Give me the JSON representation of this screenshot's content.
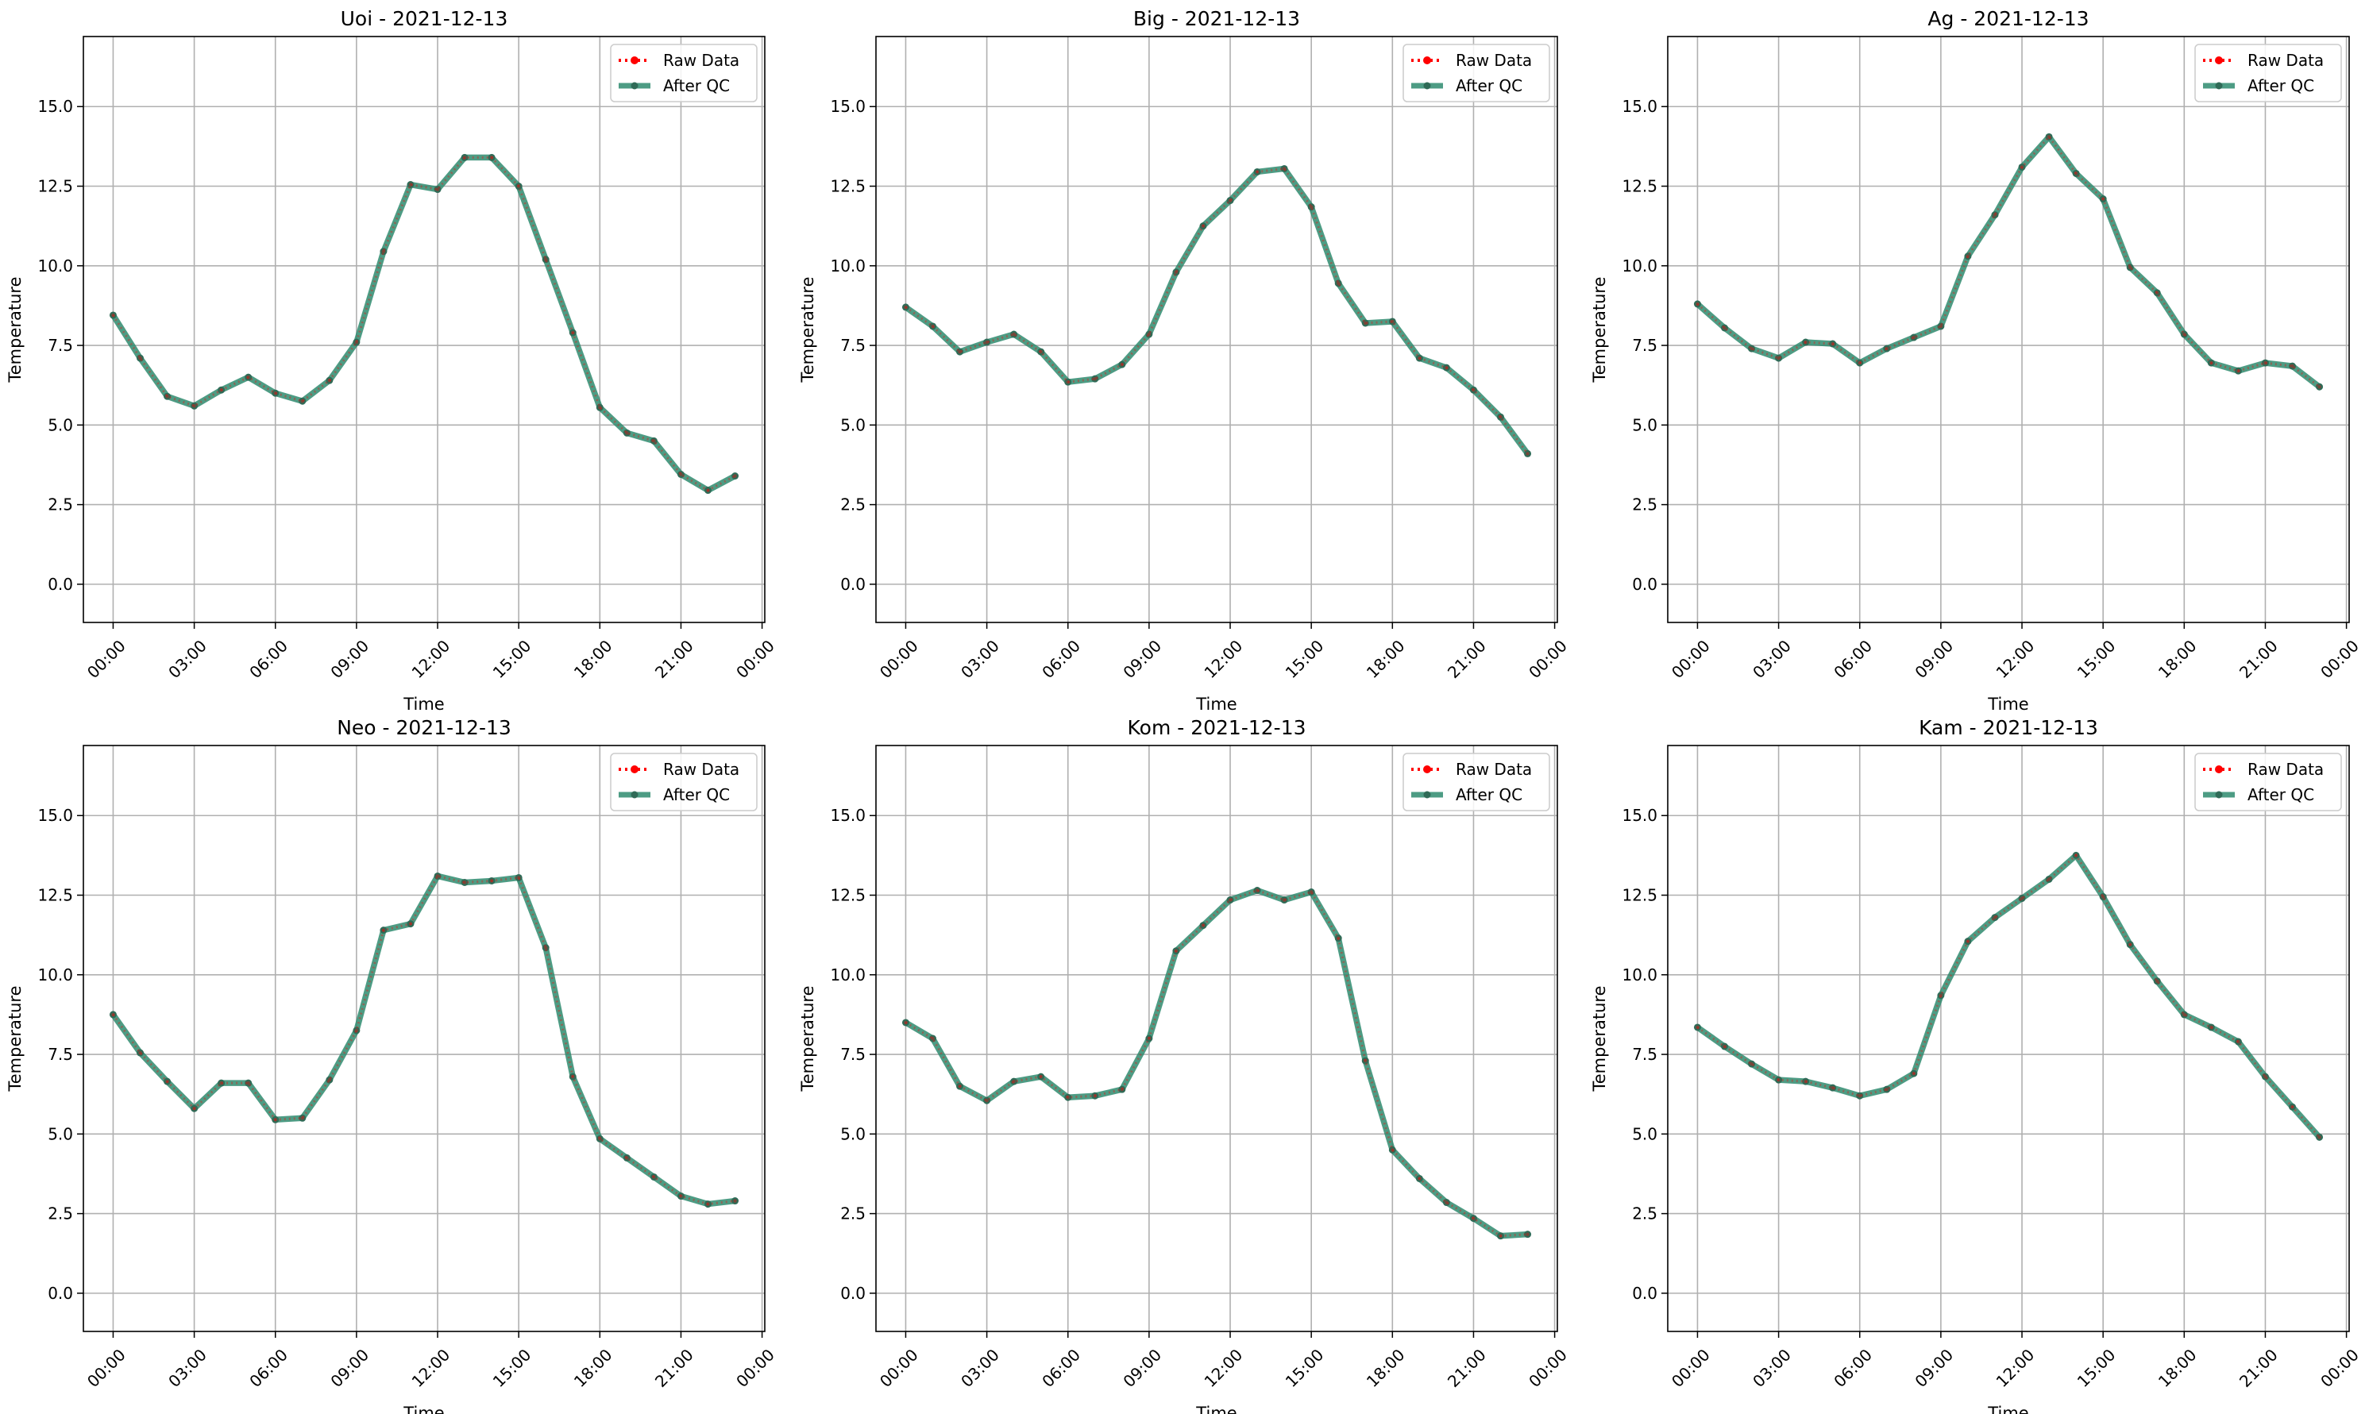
{
  "figure": {
    "background": "#ffffff"
  },
  "styles": {
    "raw_color": "#ff0000",
    "qc_color": "#2e8b6e",
    "qc_marker_color": "#2f6b57",
    "grid_color": "#b0b0b0",
    "axis_color": "#000000"
  },
  "chart_data": [
    {
      "type": "line",
      "title": "Uoi - 2021-12-13",
      "xlabel": "Time",
      "ylabel": "Temperature",
      "x_ticks": [
        "00:00",
        "03:00",
        "06:00",
        "09:00",
        "12:00",
        "15:00",
        "18:00",
        "21:00",
        "00:00"
      ],
      "y_ticks": [
        "0.0",
        "2.5",
        "5.0",
        "7.5",
        "10.0",
        "12.5",
        "15.0"
      ],
      "xlim_hours": [
        -1.1,
        24.1
      ],
      "ylim": [
        -1.2,
        17.2
      ],
      "grid": true,
      "legend_position": "top-right",
      "x_hours": [
        0,
        1,
        2,
        3,
        4,
        5,
        6,
        7,
        8,
        9,
        10,
        11,
        12,
        13,
        14,
        15,
        16,
        17,
        18,
        19,
        20,
        21,
        22,
        23
      ],
      "series": [
        {
          "name": "Raw Data",
          "style": "dotted",
          "values": [
            8.45,
            7.1,
            5.9,
            5.6,
            6.1,
            6.5,
            6.0,
            5.75,
            6.4,
            7.6,
            10.45,
            12.55,
            12.4,
            13.4,
            13.4,
            12.5,
            10.2,
            7.9,
            5.55,
            4.75,
            4.5,
            3.45,
            2.95,
            3.4
          ]
        },
        {
          "name": "After QC",
          "style": "solid",
          "values": [
            8.45,
            7.1,
            5.9,
            5.6,
            6.1,
            6.5,
            6.0,
            5.75,
            6.4,
            7.6,
            10.45,
            12.55,
            12.4,
            13.4,
            13.4,
            12.5,
            10.2,
            7.9,
            5.55,
            4.75,
            4.5,
            3.45,
            2.95,
            3.4
          ]
        }
      ]
    },
    {
      "type": "line",
      "title": "Big - 2021-12-13",
      "xlabel": "Time",
      "ylabel": "Temperature",
      "x_ticks": [
        "00:00",
        "03:00",
        "06:00",
        "09:00",
        "12:00",
        "15:00",
        "18:00",
        "21:00",
        "00:00"
      ],
      "y_ticks": [
        "0.0",
        "2.5",
        "5.0",
        "7.5",
        "10.0",
        "12.5",
        "15.0"
      ],
      "xlim_hours": [
        -1.1,
        24.1
      ],
      "ylim": [
        -1.2,
        17.2
      ],
      "grid": true,
      "legend_position": "top-right",
      "x_hours": [
        0,
        1,
        2,
        3,
        4,
        5,
        6,
        7,
        8,
        9,
        10,
        11,
        12,
        13,
        14,
        15,
        16,
        17,
        18,
        19,
        20,
        21,
        22,
        23
      ],
      "series": [
        {
          "name": "Raw Data",
          "style": "dotted",
          "values": [
            8.7,
            8.1,
            7.3,
            7.6,
            7.85,
            7.3,
            6.35,
            6.45,
            6.9,
            7.85,
            9.8,
            11.25,
            12.05,
            12.95,
            13.05,
            11.85,
            9.45,
            8.2,
            8.25,
            7.1,
            6.8,
            6.1,
            5.25,
            4.1
          ]
        },
        {
          "name": "After QC",
          "style": "solid",
          "values": [
            8.7,
            8.1,
            7.3,
            7.6,
            7.85,
            7.3,
            6.35,
            6.45,
            6.9,
            7.85,
            9.8,
            11.25,
            12.05,
            12.95,
            13.05,
            11.85,
            9.45,
            8.2,
            8.25,
            7.1,
            6.8,
            6.1,
            5.25,
            4.1
          ]
        }
      ]
    },
    {
      "type": "line",
      "title": "Ag - 2021-12-13",
      "xlabel": "Time",
      "ylabel": "Temperature",
      "x_ticks": [
        "00:00",
        "03:00",
        "06:00",
        "09:00",
        "12:00",
        "15:00",
        "18:00",
        "21:00",
        "00:00"
      ],
      "y_ticks": [
        "0.0",
        "2.5",
        "5.0",
        "7.5",
        "10.0",
        "12.5",
        "15.0"
      ],
      "xlim_hours": [
        -1.1,
        24.1
      ],
      "ylim": [
        -1.2,
        17.2
      ],
      "grid": true,
      "legend_position": "top-right",
      "x_hours": [
        0,
        1,
        2,
        3,
        4,
        5,
        6,
        7,
        8,
        9,
        10,
        11,
        12,
        13,
        14,
        15,
        16,
        17,
        18,
        19,
        20,
        21,
        22,
        23
      ],
      "series": [
        {
          "name": "Raw Data",
          "style": "dotted",
          "values": [
            8.8,
            8.05,
            7.4,
            7.1,
            7.6,
            7.55,
            6.95,
            7.4,
            7.75,
            8.1,
            10.3,
            11.6,
            13.1,
            14.05,
            12.9,
            12.1,
            9.95,
            9.15,
            7.85,
            6.95,
            6.7,
            6.95,
            6.85,
            6.2
          ]
        },
        {
          "name": "After QC",
          "style": "solid",
          "values": [
            8.8,
            8.05,
            7.4,
            7.1,
            7.6,
            7.55,
            6.95,
            7.4,
            7.75,
            8.1,
            10.3,
            11.6,
            13.1,
            14.05,
            12.9,
            12.1,
            9.95,
            9.15,
            7.85,
            6.95,
            6.7,
            6.95,
            6.85,
            6.2
          ]
        }
      ]
    },
    {
      "type": "line",
      "title": "Neo - 2021-12-13",
      "xlabel": "Time",
      "ylabel": "Temperature",
      "x_ticks": [
        "00:00",
        "03:00",
        "06:00",
        "09:00",
        "12:00",
        "15:00",
        "18:00",
        "21:00",
        "00:00"
      ],
      "y_ticks": [
        "0.0",
        "2.5",
        "5.0",
        "7.5",
        "10.0",
        "12.5",
        "15.0"
      ],
      "xlim_hours": [
        -1.1,
        24.1
      ],
      "ylim": [
        -1.2,
        17.2
      ],
      "grid": true,
      "legend_position": "top-right",
      "x_hours": [
        0,
        1,
        2,
        3,
        4,
        5,
        6,
        7,
        8,
        9,
        10,
        11,
        12,
        13,
        14,
        15,
        16,
        17,
        18,
        19,
        20,
        21,
        22,
        23
      ],
      "series": [
        {
          "name": "Raw Data",
          "style": "dotted",
          "values": [
            8.75,
            7.55,
            6.65,
            5.8,
            6.6,
            6.6,
            5.45,
            5.5,
            6.7,
            8.25,
            11.4,
            11.6,
            13.1,
            12.9,
            12.95,
            13.05,
            10.85,
            6.8,
            4.85,
            4.25,
            3.65,
            3.05,
            2.8,
            2.9
          ]
        },
        {
          "name": "After QC",
          "style": "solid",
          "values": [
            8.75,
            7.55,
            6.65,
            5.8,
            6.6,
            6.6,
            5.45,
            5.5,
            6.7,
            8.25,
            11.4,
            11.6,
            13.1,
            12.9,
            12.95,
            13.05,
            10.85,
            6.8,
            4.85,
            4.25,
            3.65,
            3.05,
            2.8,
            2.9
          ]
        }
      ]
    },
    {
      "type": "line",
      "title": "Kom - 2021-12-13",
      "xlabel": "Time",
      "ylabel": "Temperature",
      "x_ticks": [
        "00:00",
        "03:00",
        "06:00",
        "09:00",
        "12:00",
        "15:00",
        "18:00",
        "21:00",
        "00:00"
      ],
      "y_ticks": [
        "0.0",
        "2.5",
        "5.0",
        "7.5",
        "10.0",
        "12.5",
        "15.0"
      ],
      "xlim_hours": [
        -1.1,
        24.1
      ],
      "ylim": [
        -1.2,
        17.2
      ],
      "grid": true,
      "legend_position": "top-right",
      "x_hours": [
        0,
        1,
        2,
        3,
        4,
        5,
        6,
        7,
        8,
        9,
        10,
        11,
        12,
        13,
        14,
        15,
        16,
        17,
        18,
        19,
        20,
        21,
        22,
        23
      ],
      "series": [
        {
          "name": "Raw Data",
          "style": "dotted",
          "values": [
            8.5,
            8.0,
            6.5,
            6.05,
            6.65,
            6.8,
            6.15,
            6.2,
            6.4,
            8.0,
            10.75,
            11.55,
            12.35,
            12.65,
            12.35,
            12.6,
            11.15,
            7.3,
            4.5,
            3.6,
            2.85,
            2.35,
            1.8,
            1.85
          ]
        },
        {
          "name": "After QC",
          "style": "solid",
          "values": [
            8.5,
            8.0,
            6.5,
            6.05,
            6.65,
            6.8,
            6.15,
            6.2,
            6.4,
            8.0,
            10.75,
            11.55,
            12.35,
            12.65,
            12.35,
            12.6,
            11.15,
            7.3,
            4.5,
            3.6,
            2.85,
            2.35,
            1.8,
            1.85
          ]
        }
      ]
    },
    {
      "type": "line",
      "title": "Kam - 2021-12-13",
      "xlabel": "Time",
      "ylabel": "Temperature",
      "x_ticks": [
        "00:00",
        "03:00",
        "06:00",
        "09:00",
        "12:00",
        "15:00",
        "18:00",
        "21:00",
        "00:00"
      ],
      "y_ticks": [
        "0.0",
        "2.5",
        "5.0",
        "7.5",
        "10.0",
        "12.5",
        "15.0"
      ],
      "xlim_hours": [
        -1.1,
        24.1
      ],
      "ylim": [
        -1.2,
        17.2
      ],
      "grid": true,
      "legend_position": "top-right",
      "x_hours": [
        0,
        1,
        2,
        3,
        4,
        5,
        6,
        7,
        8,
        9,
        10,
        11,
        12,
        13,
        14,
        15,
        16,
        17,
        18,
        19,
        20,
        21,
        22,
        23
      ],
      "series": [
        {
          "name": "Raw Data",
          "style": "dotted",
          "values": [
            8.35,
            7.75,
            7.2,
            6.7,
            6.65,
            6.45,
            6.2,
            6.4,
            6.9,
            9.35,
            11.05,
            11.8,
            12.4,
            13.0,
            13.75,
            12.45,
            10.95,
            9.8,
            8.75,
            8.35,
            7.9,
            6.8,
            5.85,
            4.9
          ]
        },
        {
          "name": "After QC",
          "style": "solid",
          "values": [
            8.35,
            7.75,
            7.2,
            6.7,
            6.65,
            6.45,
            6.2,
            6.4,
            6.9,
            9.35,
            11.05,
            11.8,
            12.4,
            13.0,
            13.75,
            12.45,
            10.95,
            9.8,
            8.75,
            8.35,
            7.9,
            6.8,
            5.85,
            4.9
          ]
        }
      ]
    }
  ]
}
